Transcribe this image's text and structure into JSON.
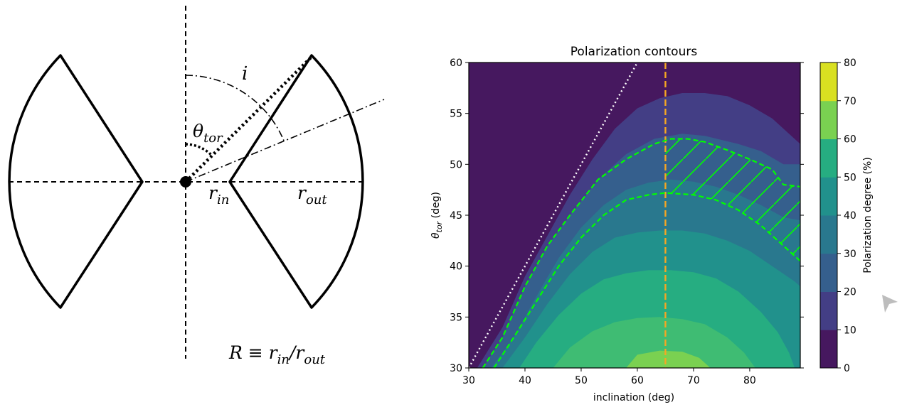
{
  "diagram": {
    "label_i": "i",
    "label_theta": "θ",
    "label_theta_sub": "tor",
    "label_rin": "r",
    "label_rin_sub": "in",
    "label_rout": "r",
    "label_rout_sub": "out",
    "label_R_formula": "R ≡ r",
    "label_R_in": "in",
    "label_R_slash": "/r",
    "label_R_out": "out"
  },
  "chart_data": {
    "type": "contour",
    "title": "Polarization contours",
    "xlabel": "inclination (deg)",
    "ylabel": "θ",
    "ylabel_sub": "tor",
    "ylabel_suffix": " (deg)",
    "xlim": [
      30,
      89
    ],
    "ylim": [
      30,
      60
    ],
    "xticks": [
      30,
      40,
      50,
      60,
      70,
      80
    ],
    "yticks": [
      30,
      35,
      40,
      45,
      50,
      55,
      60
    ],
    "colorbar": {
      "label": "Polarization degree (%)",
      "levels": [
        0,
        10,
        20,
        30,
        40,
        50,
        60,
        70,
        80
      ],
      "colors": [
        "#46185f",
        "#433e85",
        "#355f8d",
        "#29788e",
        "#21918c",
        "#26ad81",
        "#3fbc73",
        "#7ad151",
        "#d9e021"
      ]
    },
    "dotted_line": {
      "color": "#ffffff",
      "points": [
        [
          30,
          30
        ],
        [
          60,
          60
        ]
      ]
    },
    "vertical_line": {
      "color": "#f5a623",
      "x": 65
    },
    "hatched_region_color": "#00ff00",
    "dashed_contours": [
      {
        "color": "#00ff00",
        "points": [
          [
            32.5,
            30
          ],
          [
            36,
            33
          ],
          [
            40,
            38
          ],
          [
            44,
            42
          ],
          [
            48,
            45
          ],
          [
            53,
            48.5
          ],
          [
            58,
            50.5
          ],
          [
            63,
            52
          ],
          [
            66,
            52.5
          ],
          [
            69,
            52.5
          ],
          [
            72,
            52.2
          ],
          [
            76,
            51.4
          ],
          [
            80,
            50.5
          ],
          [
            84,
            49.5
          ],
          [
            86,
            48
          ],
          [
            89,
            47.8
          ]
        ]
      },
      {
        "color": "#00ff00",
        "points": [
          [
            34.5,
            30
          ],
          [
            38,
            33
          ],
          [
            42,
            36.5
          ],
          [
            46,
            40
          ],
          [
            50,
            42.8
          ],
          [
            54,
            45
          ],
          [
            58,
            46.5
          ],
          [
            62,
            47
          ],
          [
            65,
            47.2
          ],
          [
            70,
            47
          ],
          [
            74,
            46.5
          ],
          [
            78,
            45.5
          ],
          [
            82,
            44
          ],
          [
            86,
            42
          ],
          [
            89,
            40.5
          ]
        ]
      }
    ],
    "contour_levels_boundaries": [
      {
        "level": 10,
        "points": [
          [
            31.5,
            30
          ],
          [
            36,
            34
          ],
          [
            40,
            39
          ],
          [
            44,
            43
          ],
          [
            48,
            47
          ],
          [
            52,
            50.5
          ],
          [
            56,
            53.5
          ],
          [
            60,
            55.5
          ],
          [
            64,
            56.5
          ],
          [
            68,
            57
          ],
          [
            72,
            57
          ],
          [
            76,
            56.7
          ],
          [
            80,
            55.8
          ],
          [
            84,
            54.5
          ],
          [
            89,
            52
          ]
        ]
      },
      {
        "level": 20,
        "points": [
          [
            32.5,
            30
          ],
          [
            36,
            33
          ],
          [
            40,
            38
          ],
          [
            44,
            42
          ],
          [
            48,
            45
          ],
          [
            53,
            48.5
          ],
          [
            58,
            51
          ],
          [
            63,
            52.5
          ],
          [
            68,
            53
          ],
          [
            72,
            52.8
          ],
          [
            78,
            52
          ],
          [
            82,
            51.3
          ],
          [
            86,
            50
          ],
          [
            89,
            50
          ]
        ]
      },
      {
        "level": 30,
        "points": [
          [
            34,
            30
          ],
          [
            38,
            33
          ],
          [
            42,
            37
          ],
          [
            46,
            40.8
          ],
          [
            50,
            43.8
          ],
          [
            54,
            46
          ],
          [
            58,
            47.5
          ],
          [
            62,
            48.2
          ],
          [
            66,
            48.5
          ],
          [
            70,
            48.3
          ],
          [
            74,
            47.8
          ],
          [
            78,
            47
          ],
          [
            82,
            46
          ],
          [
            86,
            44.8
          ],
          [
            89,
            44.5
          ]
        ]
      },
      {
        "level": 40,
        "points": [
          [
            36,
            30
          ],
          [
            40,
            33
          ],
          [
            44,
            36.3
          ],
          [
            48,
            39.2
          ],
          [
            52,
            41.4
          ],
          [
            56,
            42.8
          ],
          [
            60,
            43.3
          ],
          [
            64,
            43.5
          ],
          [
            68,
            43.5
          ],
          [
            72,
            43.2
          ],
          [
            76,
            42.5
          ],
          [
            80,
            41.5
          ],
          [
            84,
            40
          ],
          [
            88,
            38.5
          ],
          [
            89,
            38
          ]
        ]
      },
      {
        "level": 50,
        "points": [
          [
            39,
            30
          ],
          [
            42,
            32.5
          ],
          [
            46,
            35.2
          ],
          [
            50,
            37.3
          ],
          [
            54,
            38.7
          ],
          [
            58,
            39.3
          ],
          [
            62,
            39.6
          ],
          [
            66,
            39.6
          ],
          [
            70,
            39.4
          ],
          [
            74,
            38.8
          ],
          [
            78,
            37.5
          ],
          [
            82,
            35.5
          ],
          [
            85,
            33.5
          ],
          [
            87,
            31.5
          ],
          [
            88,
            30
          ]
        ]
      },
      {
        "level": 60,
        "points": [
          [
            45,
            30
          ],
          [
            48,
            32
          ],
          [
            52,
            33.6
          ],
          [
            56,
            34.5
          ],
          [
            60,
            34.9
          ],
          [
            64,
            35
          ],
          [
            68,
            34.8
          ],
          [
            72,
            34.3
          ],
          [
            76,
            33
          ],
          [
            79,
            31.5
          ],
          [
            81,
            30
          ]
        ]
      },
      {
        "level": 70,
        "points": [
          [
            58,
            30
          ],
          [
            60,
            31.3
          ],
          [
            64,
            31.7
          ],
          [
            68,
            31.6
          ],
          [
            71,
            31
          ],
          [
            73,
            30
          ]
        ]
      }
    ]
  }
}
